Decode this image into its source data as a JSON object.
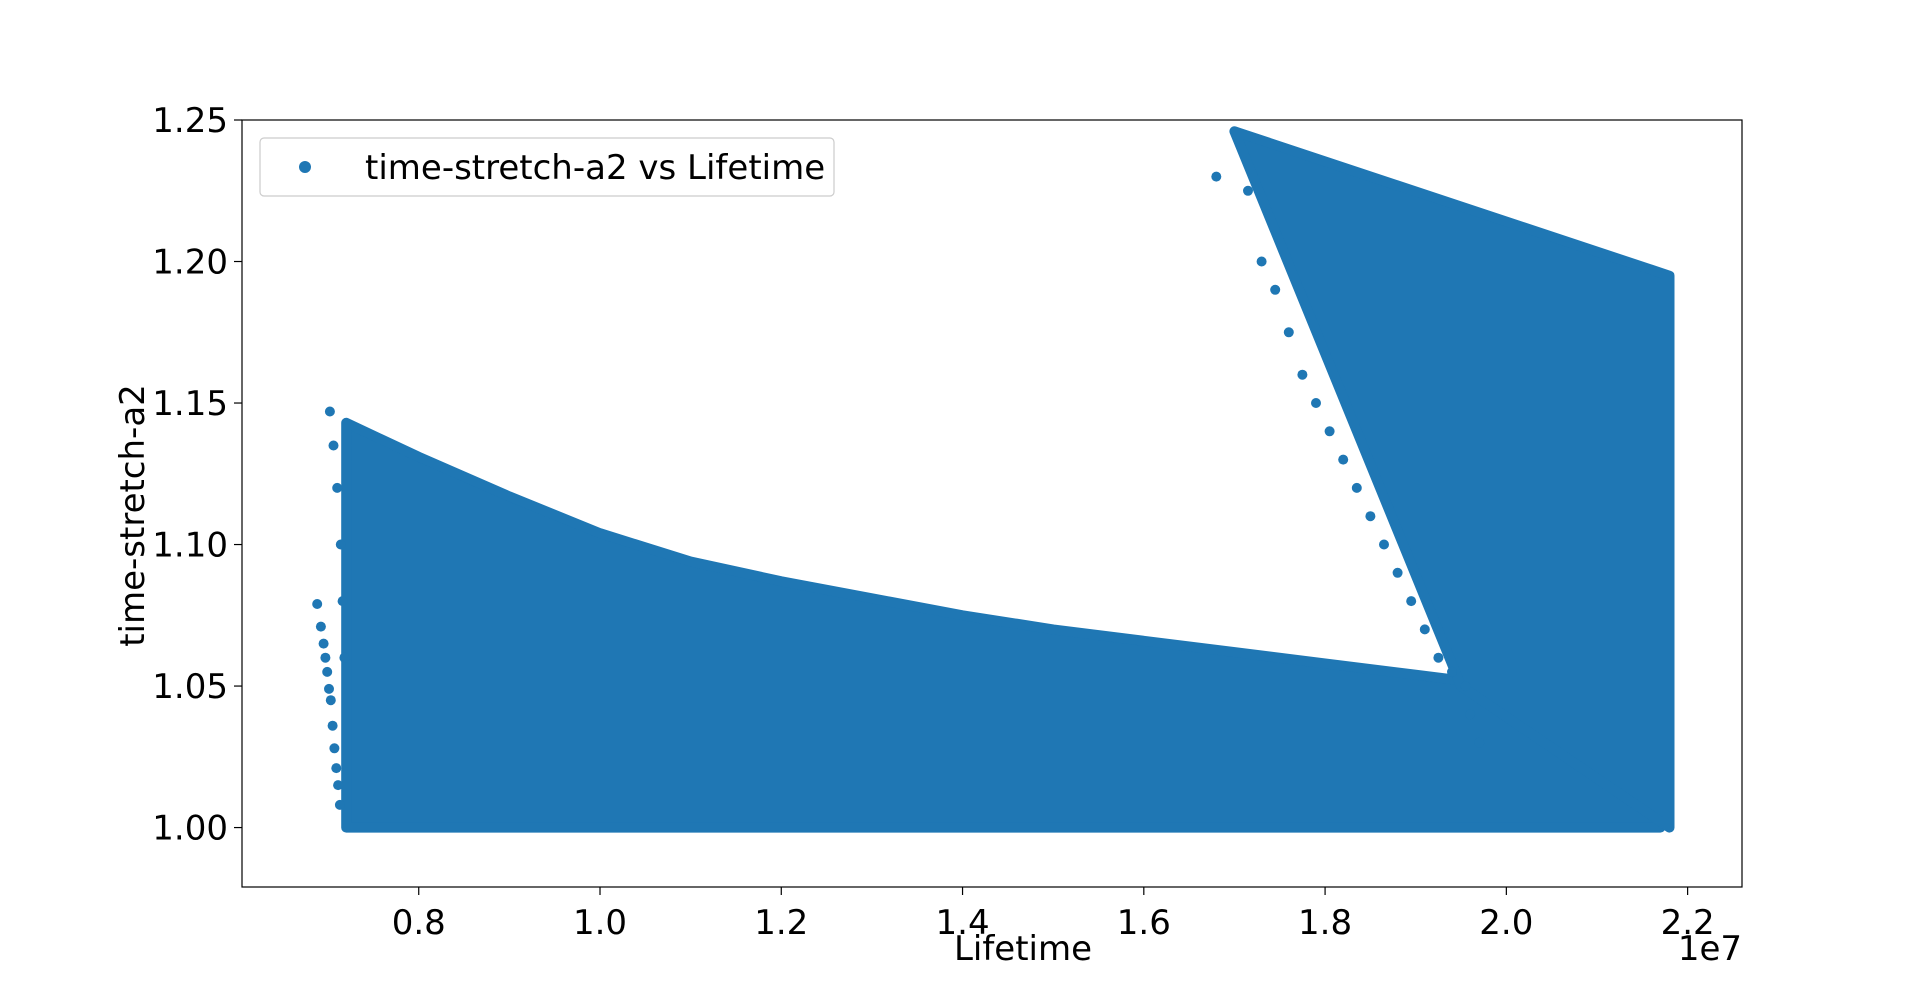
{
  "chart_data": {
    "type": "scatter",
    "xlabel": "Lifetime",
    "ylabel": "time-stretch-a2",
    "x_offset_label": "1e7",
    "x_scale": 10000000,
    "xlim": [
      0.605,
      2.26
    ],
    "ylim": [
      0.979,
      1.25
    ],
    "xticks": [
      {
        "value": 0.8,
        "label": "0.8"
      },
      {
        "value": 1.0,
        "label": "1.0"
      },
      {
        "value": 1.2,
        "label": "1.2"
      },
      {
        "value": 1.4,
        "label": "1.4"
      },
      {
        "value": 1.6,
        "label": "1.6"
      },
      {
        "value": 1.8,
        "label": "1.8"
      },
      {
        "value": 2.0,
        "label": "2.0"
      },
      {
        "value": 2.2,
        "label": "2.2"
      }
    ],
    "yticks": [
      {
        "value": 1.0,
        "label": "1.00"
      },
      {
        "value": 1.05,
        "label": "1.05"
      },
      {
        "value": 1.1,
        "label": "1.10"
      },
      {
        "value": 1.15,
        "label": "1.15"
      },
      {
        "value": 1.2,
        "label": "1.20"
      },
      {
        "value": 1.25,
        "label": "1.25"
      }
    ],
    "grid": false,
    "legend_position": "upper-left",
    "series": [
      {
        "name": "time-stretch-a2 vs Lifetime",
        "color": "#1f77b4",
        "regions": [
          {
            "shape": "lower-band",
            "x": [
              0.72,
              0.8,
              0.9,
              1.0,
              1.1,
              1.2,
              1.3,
              1.4,
              1.5,
              1.6,
              1.7,
              1.8,
              1.9,
              2.0,
              2.1,
              2.17
            ],
            "y_min": [
              1.0,
              1.0,
              1.0,
              1.0,
              1.0,
              1.0,
              1.0,
              1.0,
              1.0,
              1.0,
              1.0,
              1.0,
              1.0,
              1.0,
              1.0,
              1.0
            ],
            "y_max": [
              1.143,
              1.131,
              1.117,
              1.104,
              1.094,
              1.087,
              1.081,
              1.075,
              1.07,
              1.066,
              1.062,
              1.058,
              1.054,
              1.05,
              1.05,
              1.05
            ]
          },
          {
            "shape": "upper-quad",
            "corners": [
              [
                1.7,
                1.246
              ],
              [
                2.18,
                1.195
              ],
              [
                2.18,
                1.0
              ],
              [
                1.95,
                1.05
              ]
            ]
          },
          {
            "shape": "points",
            "x": [
              0.688,
              0.692,
              0.695,
              0.697,
              0.699,
              0.701,
              0.703,
              0.705,
              0.707,
              0.709,
              0.711,
              0.713,
              0.702,
              0.706,
              0.71,
              0.714,
              0.716,
              0.718
            ],
            "y": [
              1.079,
              1.071,
              1.065,
              1.06,
              1.055,
              1.049,
              1.045,
              1.036,
              1.028,
              1.021,
              1.015,
              1.008,
              1.147,
              1.135,
              1.12,
              1.1,
              1.08,
              1.06
            ]
          },
          {
            "shape": "points",
            "x": [
              1.68,
              1.715,
              1.73,
              1.745,
              1.76,
              1.775,
              1.79,
              1.805,
              1.82,
              1.835,
              1.85,
              1.865,
              1.88,
              1.895,
              1.91,
              1.925,
              1.94,
              1.955,
              1.96,
              1.97
            ],
            "y": [
              1.23,
              1.225,
              1.2,
              1.19,
              1.175,
              1.16,
              1.15,
              1.14,
              1.13,
              1.12,
              1.11,
              1.1,
              1.09,
              1.08,
              1.07,
              1.06,
              1.055,
              1.05,
              1.04,
              1.03
            ]
          }
        ]
      }
    ]
  }
}
